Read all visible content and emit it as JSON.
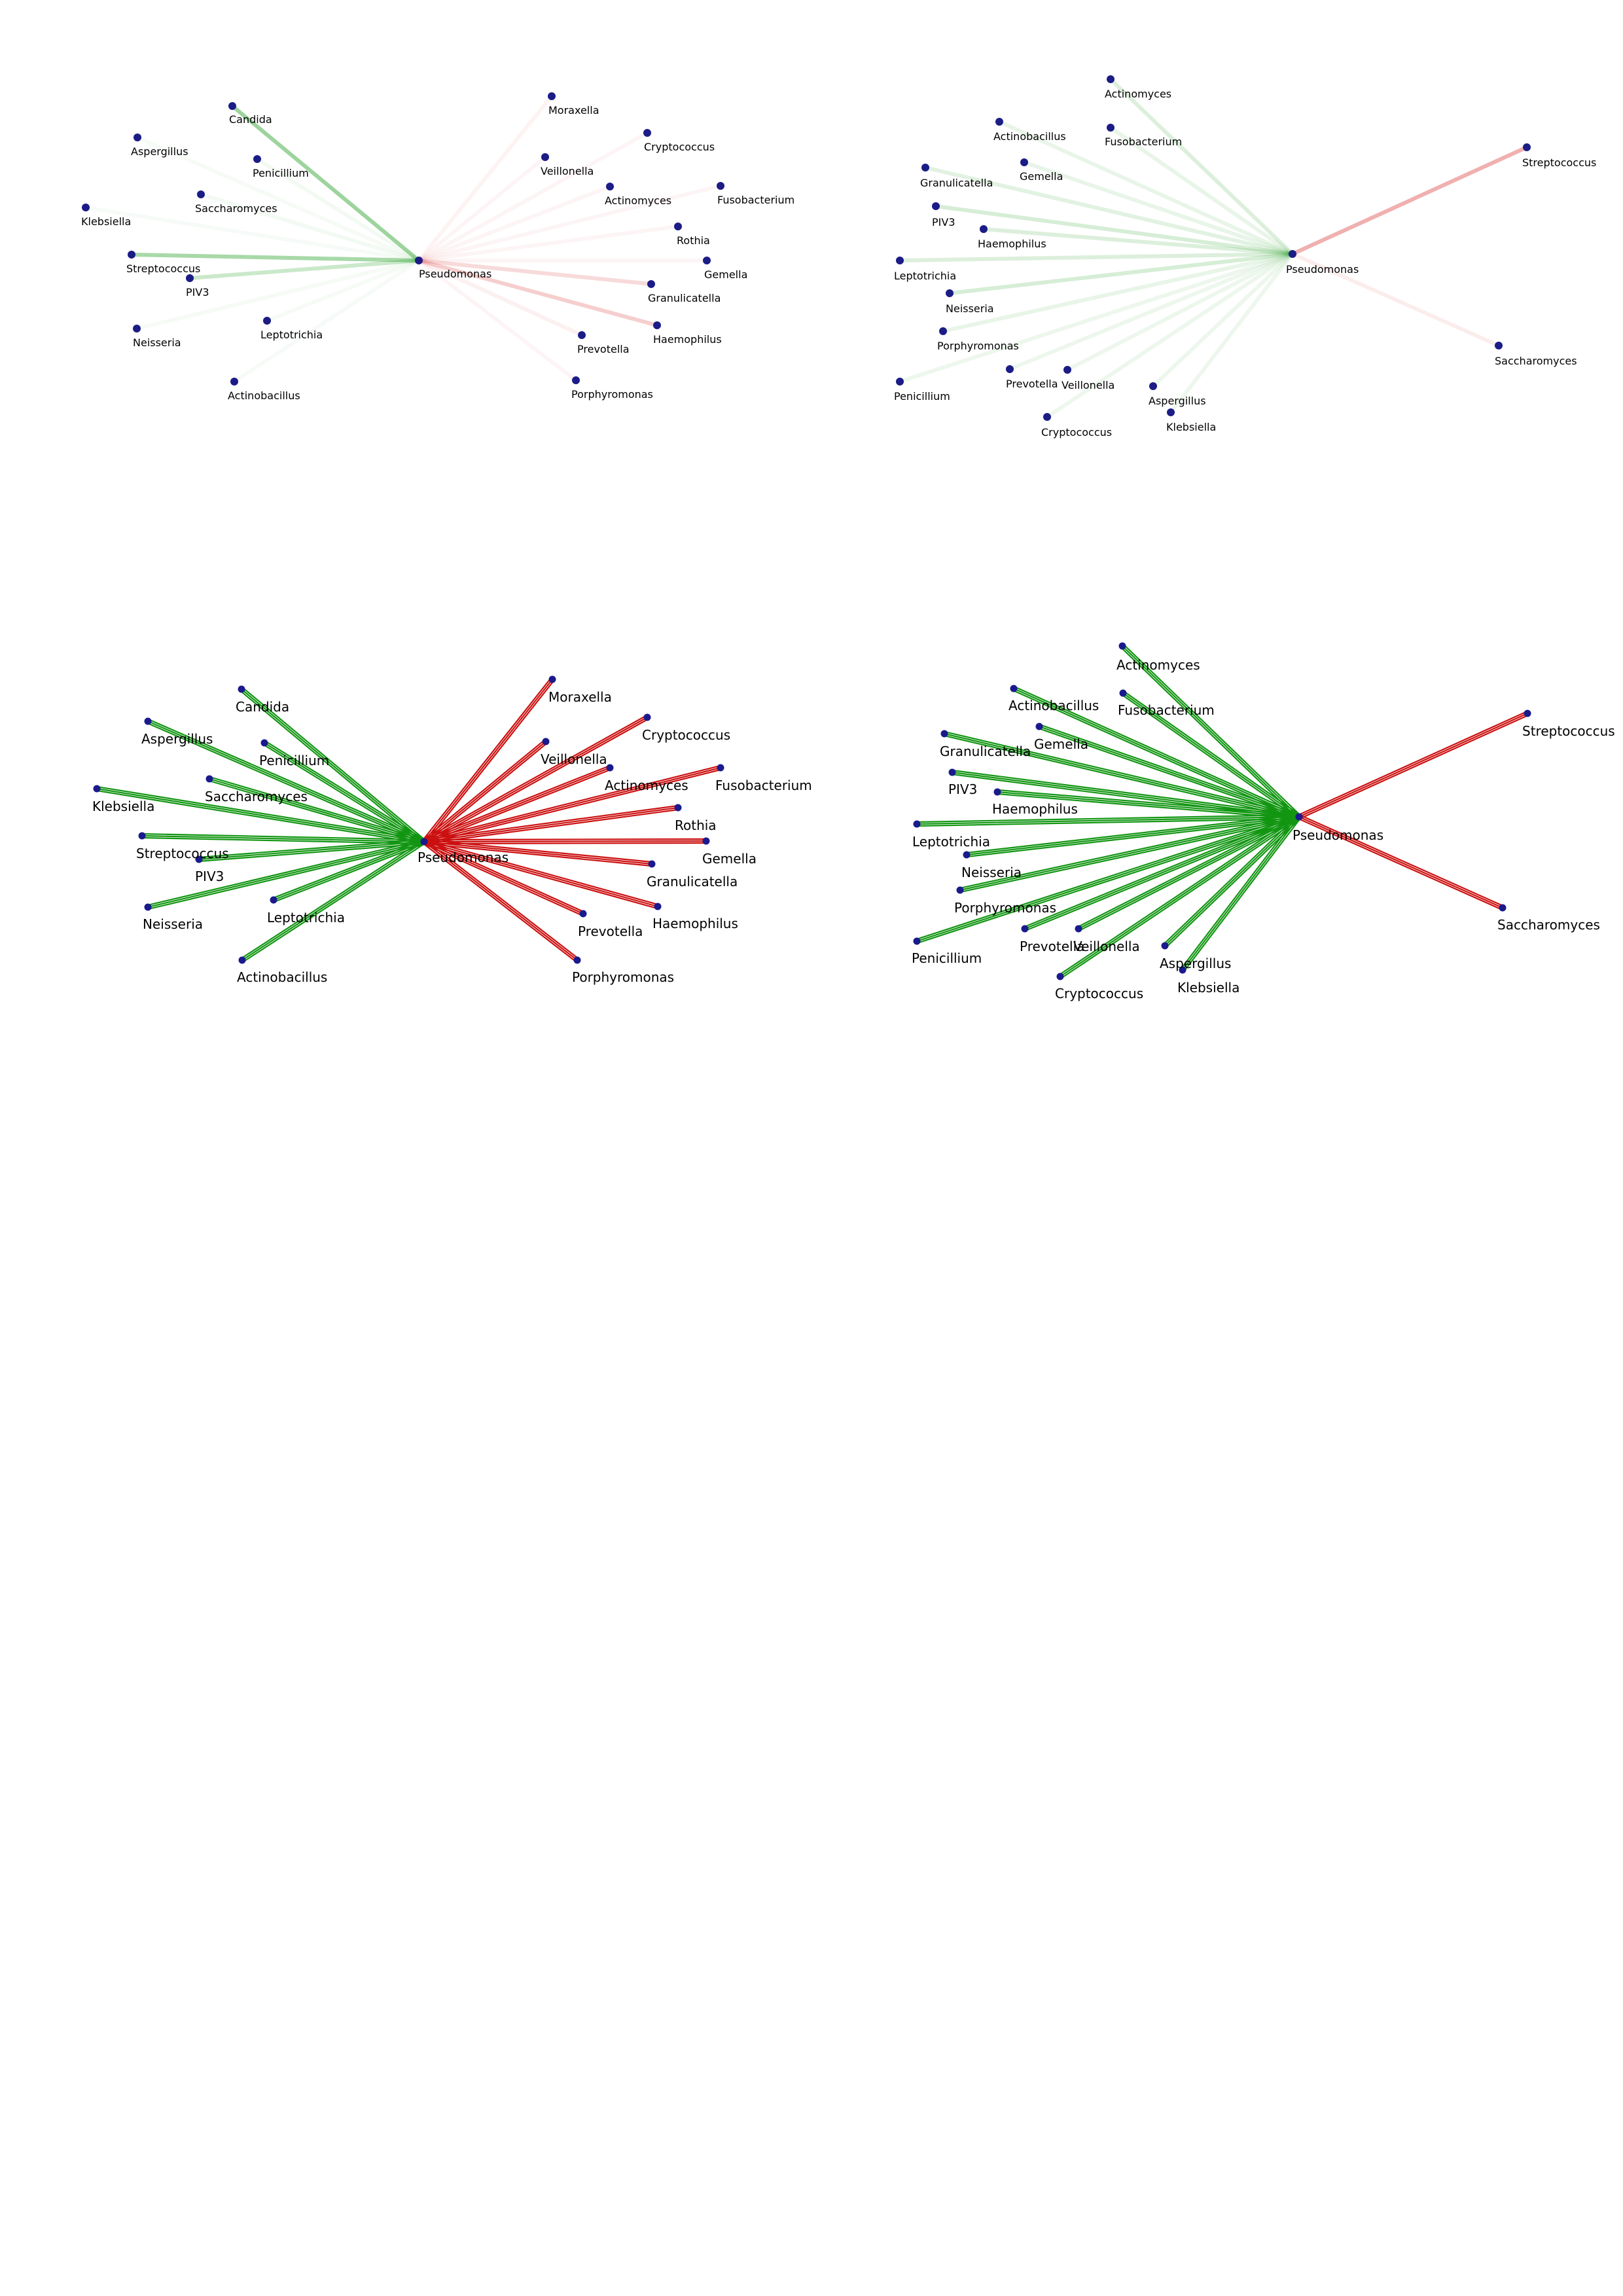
{
  "panels": [
    {
      "id": "a",
      "style": "faded",
      "hub": {
        "label": "Pseudomonas"
      },
      "nodes": [
        {
          "label": "Candida",
          "color": "#2aa02a",
          "strength": 0.85
        },
        {
          "label": "Aspergillus",
          "color": "#2aa02a",
          "strength": 0.08
        },
        {
          "label": "Penicillium",
          "color": "#2aa02a",
          "strength": 0.1
        },
        {
          "label": "Saccharomyces",
          "color": "#2aa02a",
          "strength": 0.1
        },
        {
          "label": "Klebsiella",
          "color": "#2aa02a",
          "strength": 0.05
        },
        {
          "label": "Streptococcus",
          "color": "#2aa02a",
          "strength": 0.75
        },
        {
          "label": "PIV3",
          "color": "#2aa02a",
          "strength": 0.45
        },
        {
          "label": "Neisseria",
          "color": "#2aa02a",
          "strength": 0.08
        },
        {
          "label": "Leptotrichia",
          "color": "#2aa02a",
          "strength": 0.08
        },
        {
          "label": "Actinobacillus",
          "color": "#2aa02a",
          "strength": 0.05
        },
        {
          "label": "Moraxella",
          "color": "#d62020",
          "strength": 0.1
        },
        {
          "label": "Veillonella",
          "color": "#d62020",
          "strength": 0.08
        },
        {
          "label": "Cryptococcus",
          "color": "#d62020",
          "strength": 0.08
        },
        {
          "label": "Actinomyces",
          "color": "#d62020",
          "strength": 0.08
        },
        {
          "label": "Fusobacterium",
          "color": "#d62020",
          "strength": 0.08
        },
        {
          "label": "Rothia",
          "color": "#d62020",
          "strength": 0.08
        },
        {
          "label": "Gemella",
          "color": "#d62020",
          "strength": 0.08
        },
        {
          "label": "Granulicatella",
          "color": "#d62020",
          "strength": 0.3
        },
        {
          "label": "Haemophilus",
          "color": "#d62020",
          "strength": 0.4
        },
        {
          "label": "Prevotella",
          "color": "#d62020",
          "strength": 0.12
        },
        {
          "label": "Porphyromonas",
          "color": "#d62020",
          "strength": 0.08
        }
      ]
    },
    {
      "id": "b",
      "style": "faded",
      "hub": {
        "label": "Pseudomonas"
      },
      "nodes": [
        {
          "label": "Actinomyces",
          "color": "#2aa02a",
          "strength": 0.3
        },
        {
          "label": "Actinobacillus",
          "color": "#2aa02a",
          "strength": 0.2
        },
        {
          "label": "Fusobacterium",
          "color": "#2aa02a",
          "strength": 0.2
        },
        {
          "label": "Gemella",
          "color": "#2aa02a",
          "strength": 0.2
        },
        {
          "label": "Granulicatella",
          "color": "#2aa02a",
          "strength": 0.25
        },
        {
          "label": "PIV3",
          "color": "#2aa02a",
          "strength": 0.35
        },
        {
          "label": "Haemophilus",
          "color": "#2aa02a",
          "strength": 0.3
        },
        {
          "label": "Leptotrichia",
          "color": "#2aa02a",
          "strength": 0.3
        },
        {
          "label": "Neisseria",
          "color": "#2aa02a",
          "strength": 0.35
        },
        {
          "label": "Porphyromonas",
          "color": "#2aa02a",
          "strength": 0.2
        },
        {
          "label": "Penicillium",
          "color": "#2aa02a",
          "strength": 0.15
        },
        {
          "label": "Prevotella",
          "color": "#2aa02a",
          "strength": 0.15
        },
        {
          "label": "Veillonella",
          "color": "#2aa02a",
          "strength": 0.15
        },
        {
          "label": "Cryptococcus",
          "color": "#2aa02a",
          "strength": 0.15
        },
        {
          "label": "Aspergillus",
          "color": "#2aa02a",
          "strength": 0.15
        },
        {
          "label": "Klebsiella",
          "color": "#2aa02a",
          "strength": 0.15
        },
        {
          "label": "Streptococcus",
          "color": "#d62020",
          "strength": 0.65
        },
        {
          "label": "Saccharomyces",
          "color": "#d62020",
          "strength": 0.15
        }
      ]
    },
    {
      "id": "c",
      "style": "solid",
      "hub": {
        "label": "Pseudomonas"
      },
      "nodes": [
        {
          "label": "Candida",
          "color": "#129612",
          "strength": 1
        },
        {
          "label": "Aspergillus",
          "color": "#129612",
          "strength": 1
        },
        {
          "label": "Penicillium",
          "color": "#129612",
          "strength": 1
        },
        {
          "label": "Saccharomyces",
          "color": "#129612",
          "strength": 1
        },
        {
          "label": "Klebsiella",
          "color": "#129612",
          "strength": 1
        },
        {
          "label": "Streptococcus",
          "color": "#129612",
          "strength": 1
        },
        {
          "label": "PIV3",
          "color": "#129612",
          "strength": 1
        },
        {
          "label": "Neisseria",
          "color": "#129612",
          "strength": 1
        },
        {
          "label": "Leptotrichia",
          "color": "#129612",
          "strength": 1
        },
        {
          "label": "Actinobacillus",
          "color": "#129612",
          "strength": 1
        },
        {
          "label": "Moraxella",
          "color": "#cc1010",
          "strength": 1
        },
        {
          "label": "Veillonella",
          "color": "#cc1010",
          "strength": 1
        },
        {
          "label": "Cryptococcus",
          "color": "#cc1010",
          "strength": 1
        },
        {
          "label": "Actinomyces",
          "color": "#cc1010",
          "strength": 1
        },
        {
          "label": "Fusobacterium",
          "color": "#cc1010",
          "strength": 1
        },
        {
          "label": "Rothia",
          "color": "#cc1010",
          "strength": 1
        },
        {
          "label": "Gemella",
          "color": "#cc1010",
          "strength": 1
        },
        {
          "label": "Granulicatella",
          "color": "#cc1010",
          "strength": 1
        },
        {
          "label": "Haemophilus",
          "color": "#cc1010",
          "strength": 1
        },
        {
          "label": "Prevotella",
          "color": "#cc1010",
          "strength": 1
        },
        {
          "label": "Porphyromonas",
          "color": "#cc1010",
          "strength": 1
        }
      ]
    },
    {
      "id": "d",
      "style": "solid",
      "hub": {
        "label": "Pseudomonas"
      },
      "nodes": [
        {
          "label": "Actinomyces",
          "color": "#129612",
          "strength": 1
        },
        {
          "label": "Actinobacillus",
          "color": "#129612",
          "strength": 1
        },
        {
          "label": "Fusobacterium",
          "color": "#129612",
          "strength": 1
        },
        {
          "label": "Gemella",
          "color": "#129612",
          "strength": 1
        },
        {
          "label": "Granulicatella",
          "color": "#129612",
          "strength": 1
        },
        {
          "label": "PIV3",
          "color": "#129612",
          "strength": 1
        },
        {
          "label": "Haemophilus",
          "color": "#129612",
          "strength": 1
        },
        {
          "label": "Leptotrichia",
          "color": "#129612",
          "strength": 1
        },
        {
          "label": "Neisseria",
          "color": "#129612",
          "strength": 1
        },
        {
          "label": "Porphyromonas",
          "color": "#129612",
          "strength": 1
        },
        {
          "label": "Penicillium",
          "color": "#129612",
          "strength": 1
        },
        {
          "label": "Prevotella",
          "color": "#129612",
          "strength": 1
        },
        {
          "label": "Veillonella",
          "color": "#129612",
          "strength": 1
        },
        {
          "label": "Cryptococcus",
          "color": "#129612",
          "strength": 1
        },
        {
          "label": "Aspergillus",
          "color": "#129612",
          "strength": 1
        },
        {
          "label": "Klebsiella",
          "color": "#129612",
          "strength": 1
        },
        {
          "label": "Streptococcus",
          "color": "#cc1010",
          "strength": 1
        },
        {
          "label": "Saccharomyces",
          "color": "#cc1010",
          "strength": 1
        }
      ]
    }
  ]
}
